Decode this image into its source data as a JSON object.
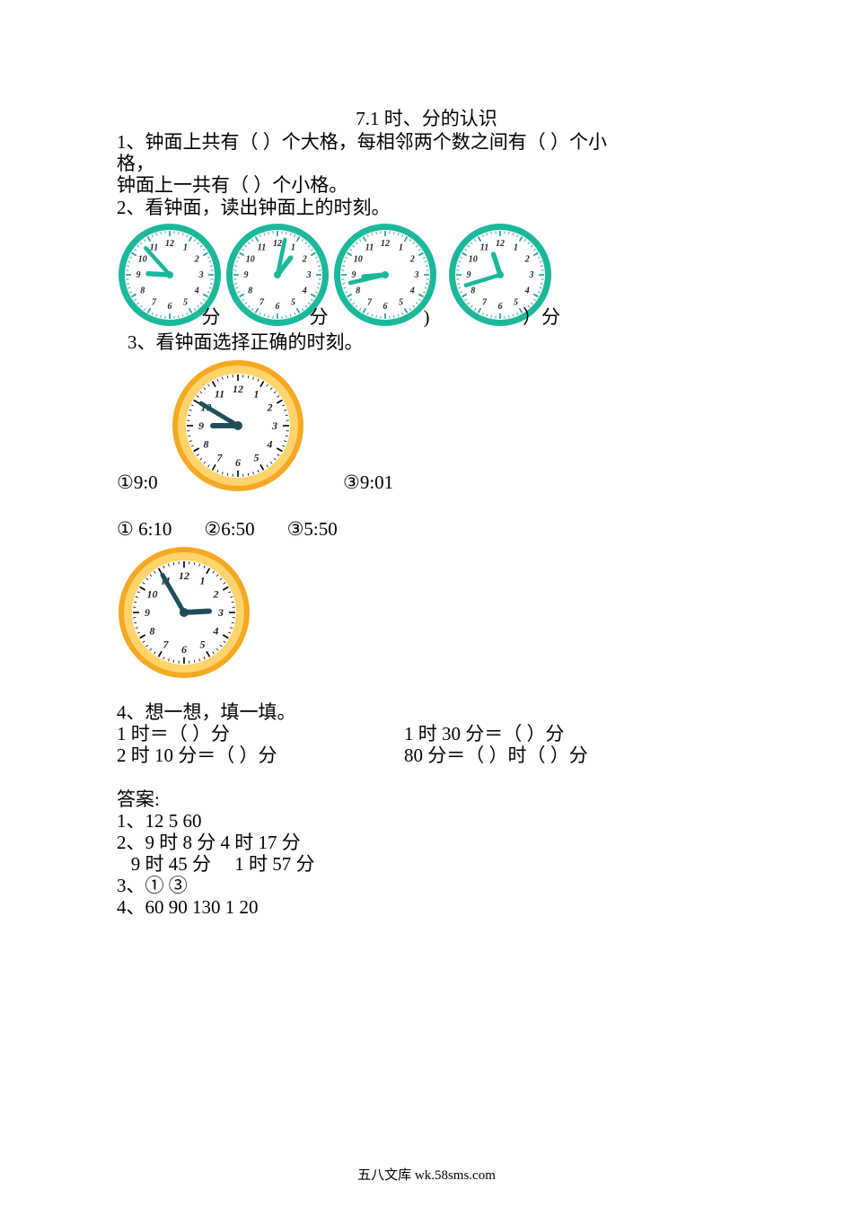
{
  "title": "7.1  时、分的认识",
  "q1_line1": "1、钟面上共有（    ）个大格，每相邻两个数之间有（    ）个小",
  "q1_line2": "格，",
  "q1_line3": "钟面上一共有（    ）个小格。",
  "q2_line": "2、看钟面，读出钟面上的时刻。",
  "q2_clocks": [
    {
      "hour_angle": -87,
      "minute_angle": -42,
      "label": "分"
    },
    {
      "hour_angle": 38,
      "minute_angle": 12,
      "label": "分"
    },
    {
      "hour_angle": -95,
      "minute_angle": -103,
      "label": ")"
    },
    {
      "hour_angle": -18,
      "minute_angle": -107,
      "label": "）分"
    }
  ],
  "q3_line": " 3、看钟面选择正确的时刻。",
  "q3_clock1": {
    "hour_angle": -90,
    "minute_angle": -59
  },
  "q3_opts1_a": "①9:0",
  "q3_opts1_c": "③9:01",
  "q3_opts2_a": "① 6:10",
  "q3_opts2_b": "②6:50",
  "q3_opts2_c": "③5:50",
  "q3_clock2": {
    "hour_angle": 87,
    "minute_angle": -30
  },
  "q4_title": "4、想一想，填一填。",
  "q4_l1a": "1 时＝（   ）分",
  "q4_l1b": "1 时 30 分＝（   ）分",
  "q4_l2a": "2 时 10 分＝（   ）分",
  "q4_l2b": "80 分＝（   ）时（   ）分",
  "ans_title": "答案:",
  "ans1": "1、12   5   60",
  "ans2a": "2、9 时 8 分      4 时 17 分",
  "ans2b": "   9 时 45 分     1 时 57 分",
  "ans3": "3、①   ③",
  "ans4": "4、60   90   130   1   20",
  "footer": "五八文库 wk.58sms.com",
  "clock_style": {
    "green_rim": "#1bb89a",
    "green_face": "#ffffff",
    "green_hand": "#1bb89a",
    "green_tick": "#14a085",
    "yellow_rim_outer": "#f6a823",
    "yellow_rim_inner": "#ffd46a",
    "yellow_face": "#ffffff",
    "yellow_hand": "#1f4e5a",
    "yellow_tick": "#000000",
    "number_color": "#223",
    "number_fontsize": 10
  }
}
